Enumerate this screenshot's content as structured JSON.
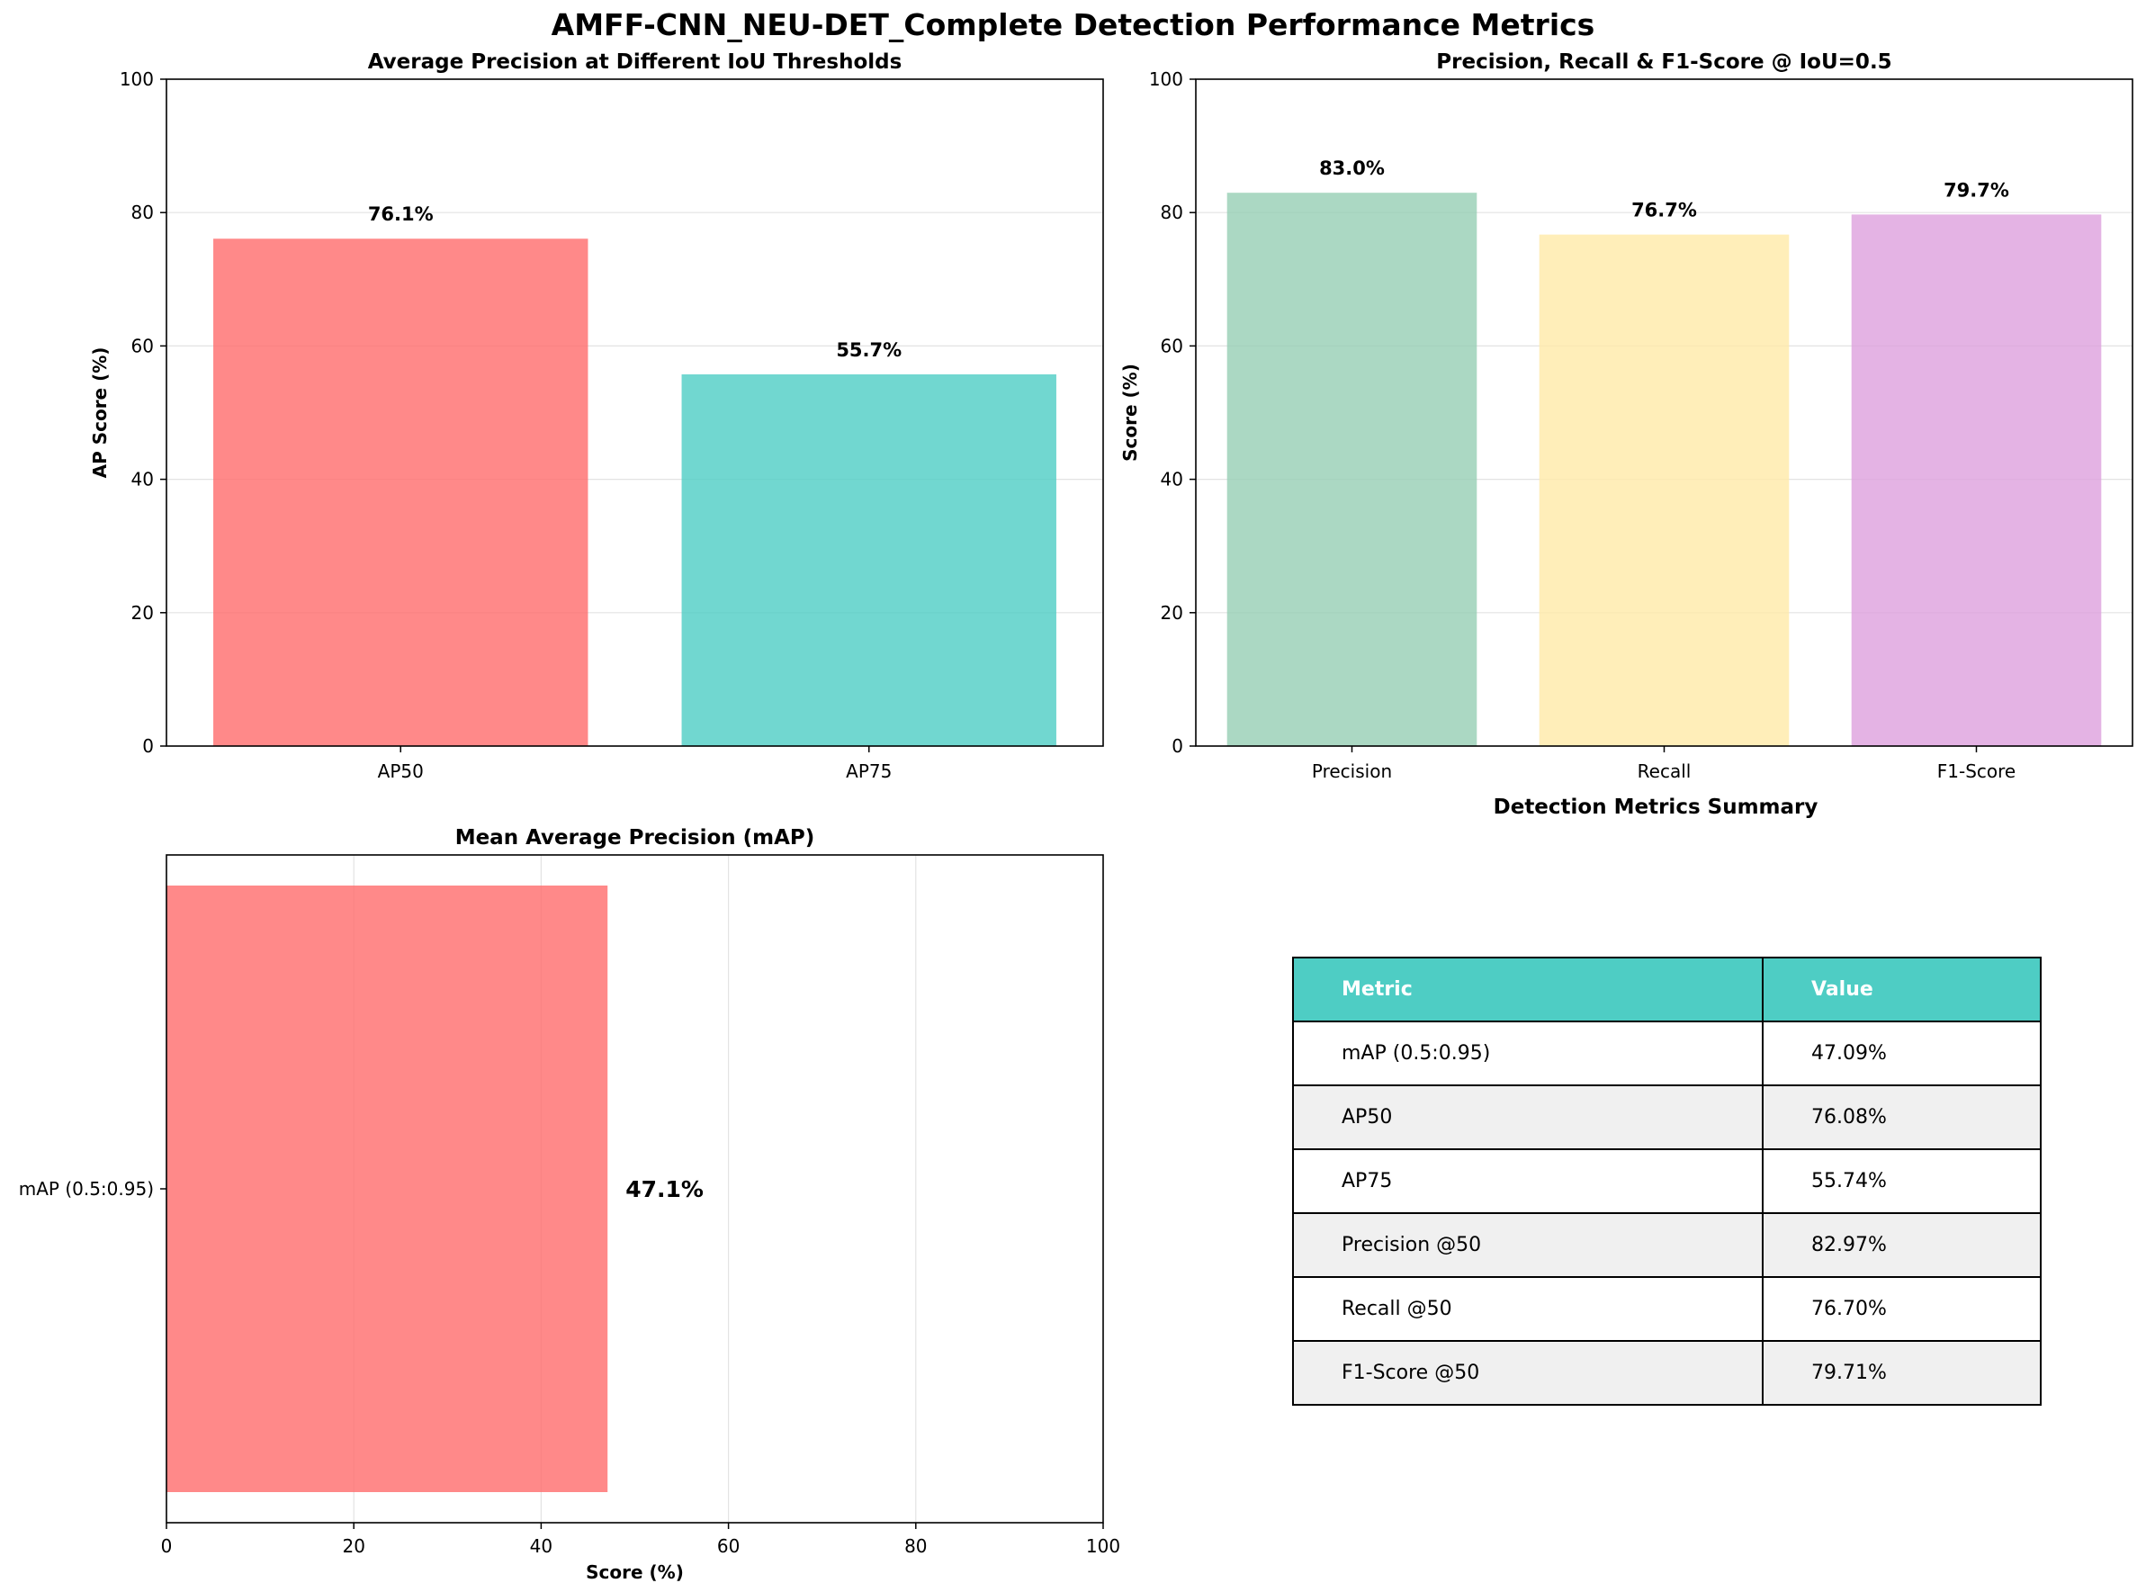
{
  "suptitle": "AMFF-CNN_NEU-DET_Complete Detection Performance Metrics",
  "chart_data": [
    {
      "type": "bar",
      "title": "Average Precision at Different IoU Thresholds",
      "ylabel": "AP Score (%)",
      "xlabel": "",
      "categories": [
        "AP50",
        "AP75"
      ],
      "values": [
        76.08,
        55.74
      ],
      "data_labels": [
        "76.1%",
        "55.7%"
      ],
      "colors": [
        "#ff6b6b",
        "#4ecdc4"
      ],
      "ylim": [
        0,
        100
      ],
      "yticks": [
        0,
        20,
        40,
        60,
        80,
        100
      ],
      "grid": "y"
    },
    {
      "type": "bar",
      "title": "Precision, Recall & F1-Score @ IoU=0.5",
      "ylabel": "Score (%)",
      "xlabel": "",
      "categories": [
        "Precision",
        "Recall",
        "F1-Score"
      ],
      "values": [
        82.97,
        76.7,
        79.71
      ],
      "data_labels": [
        "83.0%",
        "76.7%",
        "79.7%"
      ],
      "colors": [
        "#96ceb4",
        "#ffeaa7",
        "#dda0dd"
      ],
      "ylim": [
        0,
        100
      ],
      "yticks": [
        0,
        20,
        40,
        60,
        80,
        100
      ],
      "grid": "y"
    },
    {
      "type": "bar",
      "orientation": "horizontal",
      "title": "Mean Average Precision (mAP)",
      "xlabel": "Score (%)",
      "ylabel": "",
      "categories": [
        "mAP (0.5:0.95)"
      ],
      "values": [
        47.09
      ],
      "data_labels": [
        "47.1%"
      ],
      "colors": [
        "#ff6b6b"
      ],
      "xlim": [
        0,
        100
      ],
      "xticks": [
        0,
        20,
        40,
        60,
        80,
        100
      ],
      "grid": "x"
    },
    {
      "type": "table",
      "title": "Detection Metrics Summary",
      "columns": [
        "Metric",
        "Value"
      ],
      "rows": [
        [
          "mAP (0.5:0.95)",
          "47.09%"
        ],
        [
          "AP50",
          "76.08%"
        ],
        [
          "AP75",
          "55.74%"
        ],
        [
          "Precision @50",
          "82.97%"
        ],
        [
          "Recall @50",
          "76.70%"
        ],
        [
          "F1-Score @50",
          "79.71%"
        ]
      ],
      "header_color": "#4ecdc4",
      "stripe_color": "#f0f0f0"
    }
  ]
}
